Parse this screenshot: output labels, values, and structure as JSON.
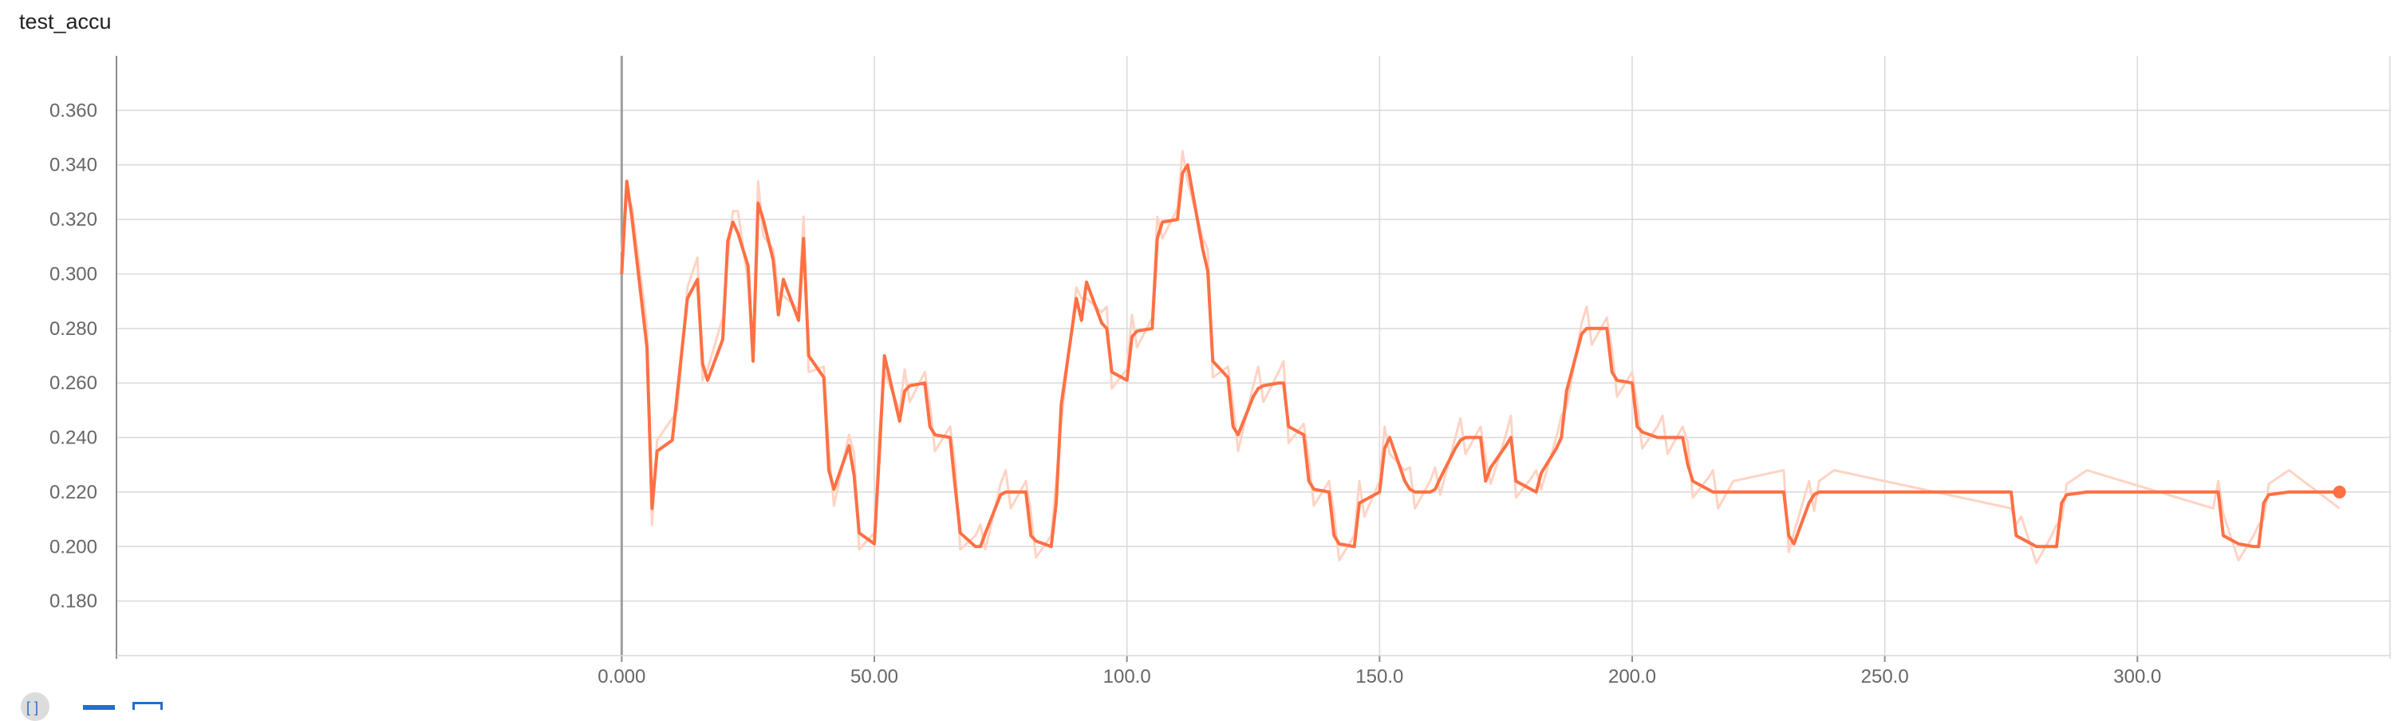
{
  "card": {
    "title": "test_accu"
  },
  "toolbar": {
    "icons": [
      "expand-icon",
      "fit-domain-icon",
      "log-scale-icon"
    ]
  },
  "colors": {
    "line": "#ff7043",
    "line_raw": "#ffd3c4",
    "grid": "#d9d9d9",
    "axis": "#8c8c8c"
  },
  "chart_data": {
    "type": "line",
    "title": "test_accu",
    "xlim": [
      -100,
      350
    ],
    "ylim": [
      0.16,
      0.38
    ],
    "x_ticks": [
      0,
      50,
      100,
      150,
      200,
      250,
      300
    ],
    "x_tick_labels": [
      "0.000",
      "50.00",
      "100.0",
      "150.0",
      "200.0",
      "250.0",
      "300.0"
    ],
    "y_ticks": [
      0.18,
      0.2,
      0.22,
      0.24,
      0.26,
      0.28,
      0.3,
      0.32,
      0.34,
      0.36
    ],
    "y_tick_labels": [
      "0.180",
      "0.200",
      "0.220",
      "0.240",
      "0.260",
      "0.280",
      "0.300",
      "0.320",
      "0.340",
      "0.360"
    ],
    "grid": true,
    "series": [
      {
        "x": [
          0,
          1,
          2,
          5,
          6,
          7,
          10,
          11,
          13,
          15,
          16,
          17,
          20,
          21,
          22,
          23,
          25,
          26,
          27,
          28,
          30,
          31,
          32,
          35,
          36,
          37,
          40,
          41,
          42,
          45,
          46,
          47,
          50,
          51,
          52,
          55,
          56,
          57,
          60,
          61,
          62,
          65,
          66,
          67,
          70,
          71,
          72,
          75,
          76,
          77,
          80,
          81,
          82,
          85,
          86,
          87,
          90,
          91,
          92,
          95,
          96,
          97,
          100,
          101,
          102,
          105,
          106,
          107,
          110,
          111,
          112,
          115,
          116,
          117,
          120,
          121,
          122,
          125,
          126,
          127,
          130,
          131,
          132,
          135,
          136,
          137,
          140,
          141,
          142,
          145,
          146,
          147,
          150,
          151,
          152,
          155,
          156,
          157,
          160,
          161,
          162,
          165,
          166,
          167,
          170,
          171,
          172,
          175,
          176,
          177,
          180,
          181,
          182,
          185,
          186,
          187,
          190,
          191,
          192,
          195,
          196,
          197,
          200,
          201,
          202,
          205,
          206,
          207,
          210,
          211,
          212,
          215,
          216,
          217,
          220,
          230,
          231,
          232,
          235,
          236,
          237,
          240,
          275,
          276,
          277,
          280,
          283,
          284,
          285,
          286,
          290,
          315,
          316,
          317,
          320,
          323,
          324,
          325,
          326,
          330,
          340
        ],
        "values": [
          0.3,
          0.334,
          0.321,
          0.273,
          0.214,
          0.235,
          0.239,
          0.256,
          0.291,
          0.298,
          0.267,
          0.261,
          0.276,
          0.312,
          0.319,
          0.315,
          0.303,
          0.268,
          0.326,
          0.32,
          0.305,
          0.285,
          0.298,
          0.283,
          0.313,
          0.27,
          0.262,
          0.228,
          0.221,
          0.237,
          0.226,
          0.205,
          0.201,
          0.234,
          0.27,
          0.246,
          0.257,
          0.259,
          0.26,
          0.244,
          0.241,
          0.24,
          0.222,
          0.205,
          0.2,
          0.2,
          0.205,
          0.219,
          0.22,
          0.22,
          0.22,
          0.204,
          0.202,
          0.2,
          0.216,
          0.252,
          0.291,
          0.283,
          0.297,
          0.282,
          0.28,
          0.264,
          0.261,
          0.277,
          0.279,
          0.28,
          0.313,
          0.319,
          0.32,
          0.337,
          0.34,
          0.309,
          0.301,
          0.268,
          0.262,
          0.244,
          0.241,
          0.255,
          0.258,
          0.259,
          0.26,
          0.26,
          0.244,
          0.241,
          0.224,
          0.221,
          0.22,
          0.204,
          0.201,
          0.2,
          0.216,
          0.217,
          0.22,
          0.236,
          0.24,
          0.224,
          0.221,
          0.22,
          0.22,
          0.221,
          0.225,
          0.236,
          0.239,
          0.24,
          0.24,
          0.224,
          0.229,
          0.237,
          0.24,
          0.224,
          0.221,
          0.22,
          0.227,
          0.236,
          0.24,
          0.257,
          0.278,
          0.28,
          0.28,
          0.28,
          0.264,
          0.261,
          0.26,
          0.244,
          0.242,
          0.24,
          0.24,
          0.24,
          0.24,
          0.23,
          0.224,
          0.221,
          0.22,
          0.22,
          0.22,
          0.22,
          0.204,
          0.201,
          0.216,
          0.219,
          0.22,
          0.22,
          0.22,
          0.204,
          0.203,
          0.2,
          0.2,
          0.2,
          0.216,
          0.219,
          0.22,
          0.22,
          0.22,
          0.204,
          0.201,
          0.2,
          0.2,
          0.216,
          0.219,
          0.22,
          0.22
        ]
      }
    ]
  }
}
